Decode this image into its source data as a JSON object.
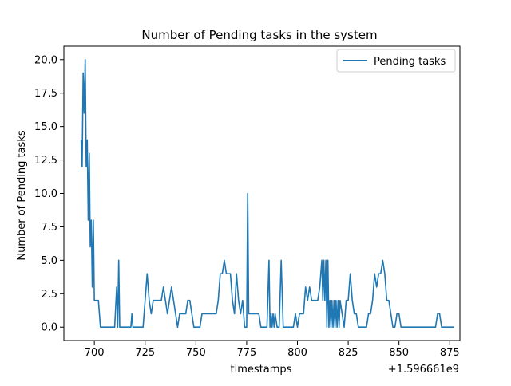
{
  "chart_data": {
    "type": "line",
    "title": "Number of Pending tasks in the system",
    "xlabel": "timestamps",
    "ylabel": "Number of Pending tasks",
    "x_offset_label": "+1.596661e9",
    "xlim": [
      685,
      880
    ],
    "ylim": [
      -1,
      21
    ],
    "x_ticks": [
      700,
      725,
      750,
      775,
      800,
      825,
      850,
      875
    ],
    "x_tick_labels": [
      "700",
      "725",
      "750",
      "775",
      "800",
      "825",
      "850",
      "875"
    ],
    "y_ticks": [
      0,
      2.5,
      5,
      7.5,
      10,
      12.5,
      15,
      17.5,
      20
    ],
    "y_tick_labels": [
      "0.0",
      "2.5",
      "5.0",
      "7.5",
      "10.0",
      "12.5",
      "15.0",
      "17.5",
      "20.0"
    ],
    "grid": false,
    "legend_position": "top-right",
    "series": [
      {
        "name": "Pending tasks",
        "color": "#1f77b4",
        "points": [
          [
            693.5,
            14
          ],
          [
            694,
            12
          ],
          [
            694.5,
            19
          ],
          [
            695,
            16
          ],
          [
            695.5,
            20
          ],
          [
            696,
            12
          ],
          [
            696.5,
            14
          ],
          [
            697,
            8
          ],
          [
            697.5,
            13
          ],
          [
            698,
            6
          ],
          [
            698.5,
            8
          ],
          [
            699,
            3
          ],
          [
            699.5,
            8
          ],
          [
            700,
            2
          ],
          [
            701,
            2
          ],
          [
            702,
            2
          ],
          [
            703,
            0
          ],
          [
            704,
            0
          ],
          [
            710,
            0
          ],
          [
            711,
            3
          ],
          [
            711.5,
            0
          ],
          [
            712,
            5
          ],
          [
            712.5,
            0
          ],
          [
            715,
            0
          ],
          [
            718,
            0
          ],
          [
            718.5,
            1
          ],
          [
            719,
            0
          ],
          [
            724,
            0
          ],
          [
            725,
            2
          ],
          [
            726,
            4
          ],
          [
            727,
            2
          ],
          [
            728,
            1
          ],
          [
            729,
            2
          ],
          [
            733,
            2
          ],
          [
            734,
            3
          ],
          [
            735,
            2
          ],
          [
            736,
            1
          ],
          [
            737,
            2
          ],
          [
            738,
            3
          ],
          [
            739,
            2
          ],
          [
            740,
            1
          ],
          [
            741,
            0
          ],
          [
            742,
            1
          ],
          [
            743,
            1
          ],
          [
            745,
            1
          ],
          [
            746,
            2
          ],
          [
            747,
            2
          ],
          [
            748,
            1
          ],
          [
            749,
            0
          ],
          [
            752,
            0
          ],
          [
            753,
            1
          ],
          [
            758,
            1
          ],
          [
            760,
            1
          ],
          [
            761,
            2
          ],
          [
            762,
            4
          ],
          [
            763,
            4
          ],
          [
            764,
            5
          ],
          [
            765,
            4
          ],
          [
            767,
            4
          ],
          [
            768,
            2
          ],
          [
            769,
            1
          ],
          [
            770,
            4
          ],
          [
            771,
            2
          ],
          [
            772,
            1
          ],
          [
            773,
            2
          ],
          [
            774,
            0
          ],
          [
            775,
            0
          ],
          [
            775.5,
            10
          ],
          [
            776,
            1
          ],
          [
            777,
            1
          ],
          [
            780,
            1
          ],
          [
            781,
            1
          ],
          [
            782,
            0
          ],
          [
            785,
            0
          ],
          [
            786,
            5
          ],
          [
            786.5,
            0
          ],
          [
            787,
            1
          ],
          [
            787.5,
            0
          ],
          [
            788,
            1
          ],
          [
            788.5,
            0
          ],
          [
            789,
            1
          ],
          [
            790,
            0
          ],
          [
            791,
            0
          ],
          [
            792,
            5
          ],
          [
            793,
            0
          ],
          [
            798,
            0
          ],
          [
            799,
            1
          ],
          [
            800,
            0
          ],
          [
            801,
            1
          ],
          [
            802,
            1
          ],
          [
            803,
            1
          ],
          [
            804,
            3
          ],
          [
            805,
            2
          ],
          [
            806,
            3
          ],
          [
            807,
            2
          ],
          [
            810,
            2
          ],
          [
            811,
            3
          ],
          [
            812,
            5
          ],
          [
            812.5,
            2
          ],
          [
            813,
            5
          ],
          [
            813.5,
            2
          ],
          [
            814,
            5
          ],
          [
            814.5,
            0
          ],
          [
            815,
            5
          ],
          [
            815.5,
            0
          ],
          [
            816,
            2
          ],
          [
            816.5,
            0
          ],
          [
            817,
            2
          ],
          [
            817.5,
            0
          ],
          [
            818,
            2
          ],
          [
            818.5,
            0
          ],
          [
            819,
            2
          ],
          [
            819.5,
            0
          ],
          [
            820,
            2
          ],
          [
            820.5,
            0
          ],
          [
            821,
            2
          ],
          [
            822,
            1
          ],
          [
            823,
            0
          ],
          [
            824,
            2
          ],
          [
            825,
            2
          ],
          [
            826,
            4
          ],
          [
            827,
            2
          ],
          [
            828,
            1
          ],
          [
            829,
            1
          ],
          [
            830,
            0
          ],
          [
            834,
            0
          ],
          [
            835,
            1
          ],
          [
            836,
            1
          ],
          [
            837,
            2
          ],
          [
            838,
            4
          ],
          [
            839,
            3
          ],
          [
            840,
            4
          ],
          [
            841,
            4
          ],
          [
            842,
            5
          ],
          [
            843,
            4
          ],
          [
            844,
            2
          ],
          [
            845,
            2
          ],
          [
            846,
            1
          ],
          [
            847,
            0
          ],
          [
            848,
            0
          ],
          [
            849,
            1
          ],
          [
            850,
            1
          ],
          [
            851,
            0
          ],
          [
            855,
            0
          ],
          [
            860,
            0
          ],
          [
            868,
            0
          ],
          [
            869,
            1
          ],
          [
            870,
            1
          ],
          [
            871,
            0
          ],
          [
            876,
            0
          ],
          [
            877,
            0
          ]
        ]
      }
    ]
  }
}
